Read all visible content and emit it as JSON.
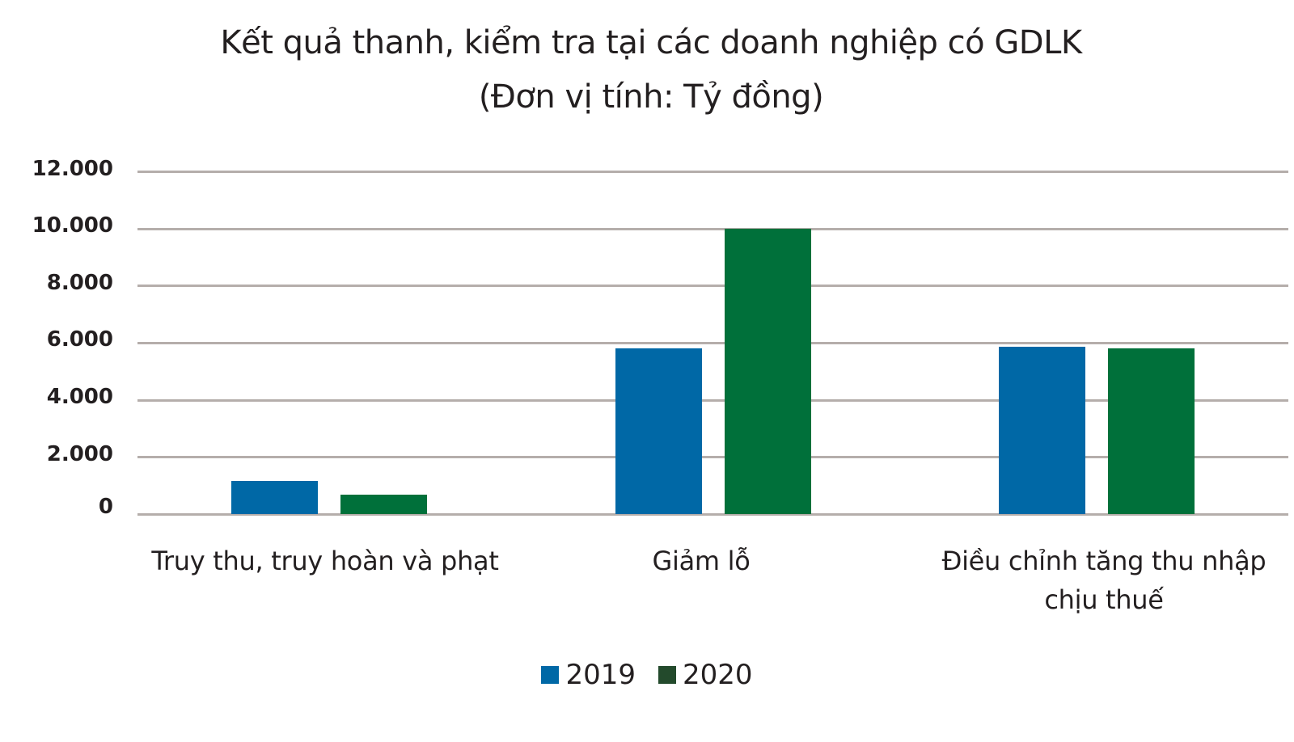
{
  "chart_data": {
    "type": "bar",
    "title": "Kết quả thanh, kiểm tra tại các doanh nghiệp có GDLK",
    "subtitle": "(Đơn vị tính: Tỷ đồng)",
    "xlabel": "",
    "ylabel": "",
    "ylim": [
      0,
      12000
    ],
    "yticks": [
      "0",
      "2.000",
      "4.000",
      "6.000",
      "8.000",
      "10.000",
      "12.000"
    ],
    "grid": true,
    "legend_position": "bottom",
    "categories": [
      "Truy thu, truy hoàn và phạt",
      "Giảm lỗ",
      "Điều chỉnh tăng thu nhập chịu thuế"
    ],
    "series": [
      {
        "name": "2019",
        "color": "#0068a6",
        "values": [
          1150,
          5800,
          5850
        ]
      },
      {
        "name": "2020",
        "color": "#00703a",
        "values": [
          680,
          10000,
          5800
        ]
      }
    ]
  },
  "title_line1": "Kết quả thanh, kiểm tra tại các doanh nghiệp có GDLK",
  "title_line2": "(Đơn vị tính: Tỷ đồng)",
  "y_axis": {
    "ticks": [
      {
        "label": "12.000",
        "value": 12000
      },
      {
        "label": "10.000",
        "value": 10000
      },
      {
        "label": "8.000",
        "value": 8000
      },
      {
        "label": "6.000",
        "value": 6000
      },
      {
        "label": "4.000",
        "value": 4000
      },
      {
        "label": "2.000",
        "value": 2000
      },
      {
        "label": "0",
        "value": 0
      }
    ]
  },
  "x_axis": {
    "labels": [
      {
        "line1": "Truy thu, truy hoàn và phạt",
        "line2": ""
      },
      {
        "line1": "Giảm lỗ",
        "line2": ""
      },
      {
        "line1": "Điều chỉnh tăng thu nhập",
        "line2": "chịu thuế"
      }
    ]
  },
  "legend": {
    "items": [
      {
        "label": "2019",
        "color": "#0068a6"
      },
      {
        "label": "2020",
        "color": "#234a2c"
      }
    ]
  }
}
